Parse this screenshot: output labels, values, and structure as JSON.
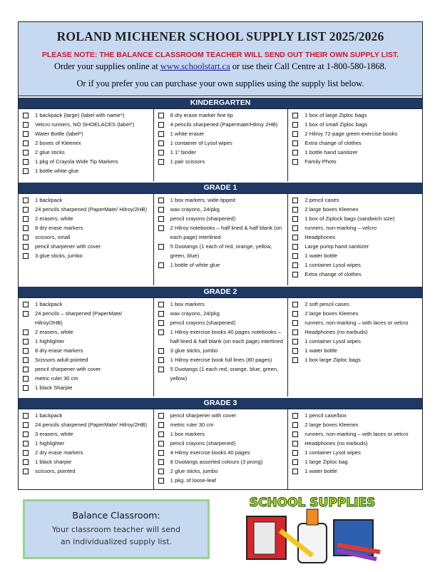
{
  "header": {
    "title": "ROLAND MICHENER SCHOOL SUPPLY LIST 2025/2026",
    "note": "PLEASE NOTE:  THE BALANCE CLASSROOM TEACHER WILL SEND OUT THEIR OWN SUPPLY LIST.",
    "order_before": "Order your supplies online at ",
    "order_link": "www.schoolstart.ca",
    "order_after": " or use their Call Centre at 1-800-580-1868.",
    "prefer": "Or if you prefer you can purchase your own supplies using the supply list below."
  },
  "sections": [
    {
      "heading": "KINDERGARTEN",
      "columns": [
        [
          "1 backpack (large) (label with name*)",
          "Velcro runners, NO SHOELACES (label*)",
          "Water Bottle (label*)",
          "2 boxes of Kleenex",
          "2 glue sticks",
          "1 pkg of Crayola Wide Tip Markers",
          "1 bottle white glue"
        ],
        [
          "8 dry erase marker fine tip",
          "4 pencils sharpened (Papermate/Hilroy 2HB)",
          "1 white eraser",
          "1 container of Lysol wipes",
          "1 1\" binder",
          "1 pair scissors"
        ],
        [
          "1 box of large Ziploc bags",
          "1 box of small Ziploc bags",
          "2 Hilroy 72-page green exercise books",
          "Extra change of clothes",
          "1 bottle hand sanitizer",
          "Family Photo"
        ]
      ]
    },
    {
      "heading": "GRADE 1",
      "columns": [
        [
          "1 backpack",
          "24 pencils sharpened (PaperMate/ Hilroy/2HB)",
          "2 erasers, white",
          "8 dry erase markers",
          "scissors, small",
          "pencil sharpener with cover",
          "3 glue sticks, jumbo"
        ],
        [
          "1 box markers, wide-tipped",
          "wax crayons, 24/pkg",
          "pencil crayons (sharpened)",
          "2 Hilroy notebooks – half lined & half blank (on each page) interlined",
          "5 Duotangs (1 each of red, orange, yellow, green, blue)",
          "1 bottle of white glue"
        ],
        [
          "2 pencil cases",
          "2 large boxes Kleenex",
          "1 box of Ziplock bags (sandwich size)",
          "runners, non-marking – velcro",
          "Headphones",
          "Large pump hand sanitizer",
          "1 water bottle",
          "1 container Lysol wipes",
          "Extra change of clothes"
        ]
      ]
    },
    {
      "heading": "GRADE 2",
      "columns": [
        [
          "1 backpack",
          "24 pencils – sharpened (PaperMate/ Hilroy/2HB)",
          "2 erasers, white",
          "1 highlighter",
          "8 dry erase markers",
          "Scissors adult pointed",
          "pencil sharpener with cover",
          "metric ruler 30 cm",
          "1 black Sharpie"
        ],
        [
          "1 box markers",
          "wax crayons, 24/pkg",
          "pencil crayons (sharpened)",
          "1 Hilroy exercise books 40 pages notebooks – half lined & half blank (on each page) interlined",
          "3 glue sticks, jumbo",
          "1 Hilroy exercise book full lines (80 pages)",
          "5 Duotangs (1 each red, orange, blue, green, yellow)"
        ],
        [
          "2 soft pencil cases",
          "2 large boxes Kleenex",
          "runners, non-marking – with laces or velcro",
          "Headphones (no earbuds)",
          "1 container Lysol wipes",
          "1 water bottle",
          "1 box large Ziploc bags"
        ]
      ]
    },
    {
      "heading": "GRADE 3",
      "columns": [
        [
          "1 backpack",
          "24 pencils sharpened (PaperMate/ Hilroy/2HB)",
          "3 erasers, white",
          "1 highlighter",
          "2 dry erase markers",
          "1 black sharpie",
          "scissors, pointed"
        ],
        [
          "pencil sharpener with cover",
          "metric ruler 30 cm",
          "1 box markers",
          "pencil crayons (sharpened)",
          "4 Hilroy exercise books 40 pages",
          "8 Duotangs assorted colours (3 prong)",
          "2 glue sticks, jumbo",
          "1 pkg. of loose-leaf"
        ],
        [
          "1 pencil case/box",
          "2 large boxes Kleenex",
          "runners, non-marking – with laces or velcro",
          "Headphones (no earbuds)",
          "1 container Lysol wipes",
          "1 large Ziploc bag",
          "1 water bottle"
        ]
      ]
    }
  ],
  "balance": {
    "title": "Balance Classroom:",
    "text": "Your classroom teacher will send an individualized supply list."
  },
  "clipart": {
    "title": "SCHOOL SUPPLIES"
  }
}
